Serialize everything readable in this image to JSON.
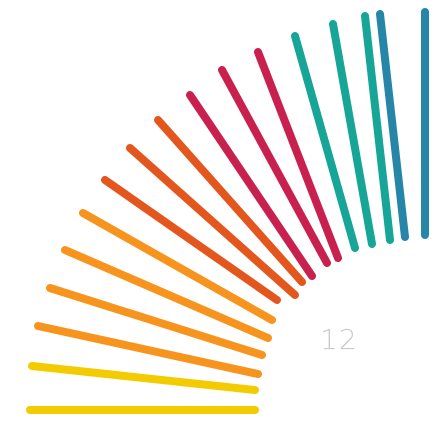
{
  "page": {
    "page_number": "12"
  },
  "graphic": {
    "icon": "fan-of-colored-stripes",
    "stripe_colors": [
      "#f2cc00",
      "#f2cc00",
      "#f7941d",
      "#f7941d",
      "#f7941d",
      "#f7941d",
      "#e3571f",
      "#e3571f",
      "#e3571f",
      "#c8204f",
      "#c8204f",
      "#c8204f",
      "#16a596",
      "#16a596",
      "#16a596",
      "#2686a8",
      "#2686a8"
    ]
  }
}
